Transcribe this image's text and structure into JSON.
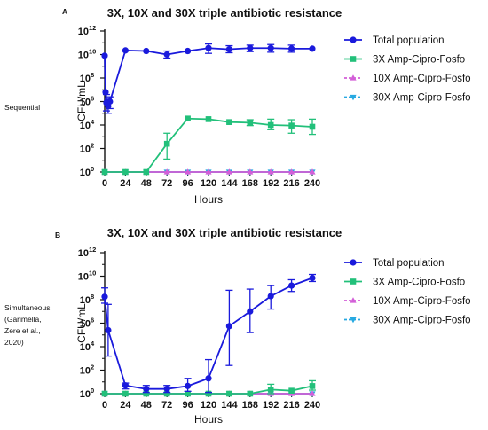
{
  "chart_data": [
    {
      "panel": "A",
      "type": "line",
      "side_label": [
        "Sequential"
      ],
      "title": "3X, 10X and 30X triple antibiotic resistance",
      "xlabel": "Hours",
      "ylabel": "CFU/mL",
      "xlim": [
        0,
        240
      ],
      "x_ticks": [
        0,
        24,
        48,
        72,
        96,
        120,
        144,
        168,
        192,
        216,
        240
      ],
      "y_scale": "log",
      "ylim_log10": [
        0,
        12
      ],
      "y_ticks_log10": [
        0,
        2,
        4,
        6,
        8,
        10,
        12
      ],
      "y_tick_base": "10",
      "series": [
        {
          "name": "Total population",
          "marker": "circle",
          "color": "#1a1adc",
          "points": [
            {
              "x": 0,
              "log10": 9.9
            },
            {
              "x": 1,
              "log10": 6.8
            },
            {
              "x": 2,
              "log10": 5.9,
              "err_lo": 5.2,
              "err_hi": 6.6
            },
            {
              "x": 4,
              "log10": 5.6,
              "err_lo": 5.0,
              "err_hi": 6.2
            },
            {
              "x": 6,
              "log10": 6.0,
              "err_lo": 5.4,
              "err_hi": 6.4
            },
            {
              "x": 24,
              "log10": 10.35
            },
            {
              "x": 48,
              "log10": 10.3
            },
            {
              "x": 72,
              "log10": 10.0,
              "err_lo": 9.7,
              "err_hi": 10.3
            },
            {
              "x": 96,
              "log10": 10.3
            },
            {
              "x": 120,
              "log10": 10.55,
              "err_lo": 10.1,
              "err_hi": 10.9
            },
            {
              "x": 144,
              "log10": 10.45,
              "err_lo": 10.15,
              "err_hi": 10.75
            },
            {
              "x": 168,
              "log10": 10.55,
              "err_lo": 10.25,
              "err_hi": 10.8
            },
            {
              "x": 192,
              "log10": 10.55,
              "err_lo": 10.2,
              "err_hi": 10.85
            },
            {
              "x": 216,
              "log10": 10.5,
              "err_lo": 10.2,
              "err_hi": 10.8
            },
            {
              "x": 240,
              "log10": 10.5
            }
          ]
        },
        {
          "name": "3X Amp-Cipro-Fosfo",
          "marker": "square",
          "color": "#22c07a",
          "points": [
            {
              "x": 0,
              "log10": 0
            },
            {
              "x": 24,
              "log10": 0
            },
            {
              "x": 48,
              "log10": 0
            },
            {
              "x": 72,
              "log10": 2.4,
              "err_lo": 1.1,
              "err_hi": 3.3
            },
            {
              "x": 96,
              "log10": 4.55
            },
            {
              "x": 120,
              "log10": 4.5
            },
            {
              "x": 144,
              "log10": 4.25
            },
            {
              "x": 168,
              "log10": 4.2,
              "err_lo": 3.95,
              "err_hi": 4.45
            },
            {
              "x": 192,
              "log10": 4.0,
              "err_lo": 3.6,
              "err_hi": 4.5
            },
            {
              "x": 216,
              "log10": 3.95,
              "err_lo": 3.3,
              "err_hi": 4.45
            },
            {
              "x": 240,
              "log10": 3.85,
              "err_lo": 3.2,
              "err_hi": 4.5
            }
          ]
        },
        {
          "name": "10X Amp-Cipro-Fosfo",
          "marker": "triangle-up",
          "color": "#d35fd8",
          "points": [
            {
              "x": 0,
              "log10": 0
            },
            {
              "x": 24,
              "log10": 0
            },
            {
              "x": 48,
              "log10": 0
            },
            {
              "x": 72,
              "log10": 0
            },
            {
              "x": 96,
              "log10": 0
            },
            {
              "x": 120,
              "log10": 0
            },
            {
              "x": 144,
              "log10": 0
            },
            {
              "x": 168,
              "log10": 0
            },
            {
              "x": 192,
              "log10": 0
            },
            {
              "x": 216,
              "log10": 0
            },
            {
              "x": 240,
              "log10": 0
            }
          ]
        },
        {
          "name": "30X Amp-Cipro-Fosfo",
          "marker": "triangle-down",
          "color": "#27a9e1",
          "points": [
            {
              "x": 0,
              "log10": 0
            },
            {
              "x": 24,
              "log10": 0
            },
            {
              "x": 48,
              "log10": 0
            },
            {
              "x": 72,
              "log10": 0
            },
            {
              "x": 96,
              "log10": 0
            },
            {
              "x": 120,
              "log10": 0
            },
            {
              "x": 144,
              "log10": 0
            },
            {
              "x": 168,
              "log10": 0
            },
            {
              "x": 192,
              "log10": 0
            },
            {
              "x": 216,
              "log10": 0
            },
            {
              "x": 240,
              "log10": 0
            }
          ]
        }
      ]
    },
    {
      "panel": "B",
      "type": "line",
      "side_label": [
        "Simultaneous",
        "(Garimella,",
        "Zere et al.,",
        "2020)"
      ],
      "title": "3X, 10X and 30X triple antibiotic resistance",
      "xlabel": "Hours",
      "ylabel": "CFU/mL",
      "xlim": [
        0,
        240
      ],
      "x_ticks": [
        0,
        24,
        48,
        72,
        96,
        120,
        144,
        168,
        192,
        216,
        240
      ],
      "y_scale": "log",
      "ylim_log10": [
        0,
        12
      ],
      "y_ticks_log10": [
        0,
        2,
        4,
        6,
        8,
        10,
        12
      ],
      "y_tick_base": "10",
      "series": [
        {
          "name": "Total population",
          "marker": "circle",
          "color": "#1a1adc",
          "points": [
            {
              "x": 0,
              "log10": 8.25,
              "err_lo": 7.7,
              "err_hi": 9.0
            },
            {
              "x": 4,
              "log10": 5.4,
              "err_lo": 3.2,
              "err_hi": 7.6
            },
            {
              "x": 24,
              "log10": 0.7,
              "err_lo": 0.4,
              "err_hi": 0.9
            },
            {
              "x": 48,
              "log10": 0.4,
              "err_lo": 0.1,
              "err_hi": 0.7
            },
            {
              "x": 72,
              "log10": 0.4,
              "err_lo": 0.1,
              "err_hi": 0.7
            },
            {
              "x": 96,
              "log10": 0.65,
              "err_lo": 0.2,
              "err_hi": 1.3
            },
            {
              "x": 120,
              "log10": 1.3,
              "err_lo": 0.1,
              "err_hi": 2.9
            },
            {
              "x": 144,
              "log10": 5.75,
              "err_lo": 2.4,
              "err_hi": 8.8
            },
            {
              "x": 168,
              "log10": 7.0,
              "err_lo": 5.2,
              "err_hi": 8.9
            },
            {
              "x": 192,
              "log10": 8.3,
              "err_lo": 7.2,
              "err_hi": 9.2
            },
            {
              "x": 216,
              "log10": 9.2,
              "err_lo": 8.7,
              "err_hi": 9.7
            },
            {
              "x": 240,
              "log10": 9.85,
              "err_lo": 9.55,
              "err_hi": 10.15
            }
          ]
        },
        {
          "name": "3X Amp-Cipro-Fosfo",
          "marker": "square",
          "color": "#22c07a",
          "points": [
            {
              "x": 0,
              "log10": 0
            },
            {
              "x": 24,
              "log10": 0
            },
            {
              "x": 48,
              "log10": 0
            },
            {
              "x": 72,
              "log10": 0
            },
            {
              "x": 96,
              "log10": 0
            },
            {
              "x": 120,
              "log10": 0
            },
            {
              "x": 144,
              "log10": 0
            },
            {
              "x": 168,
              "log10": 0
            },
            {
              "x": 192,
              "log10": 0.35,
              "err_lo": 0.0,
              "err_hi": 0.8
            },
            {
              "x": 216,
              "log10": 0.25
            },
            {
              "x": 240,
              "log10": 0.65,
              "err_lo": 0.3,
              "err_hi": 1.1
            }
          ]
        },
        {
          "name": "10X Amp-Cipro-Fosfo",
          "marker": "triangle-up",
          "color": "#d35fd8",
          "points": [
            {
              "x": 0,
              "log10": 0
            },
            {
              "x": 24,
              "log10": 0
            },
            {
              "x": 48,
              "log10": 0
            },
            {
              "x": 72,
              "log10": 0
            },
            {
              "x": 96,
              "log10": 0
            },
            {
              "x": 120,
              "log10": 0
            },
            {
              "x": 144,
              "log10": 0
            },
            {
              "x": 168,
              "log10": 0
            },
            {
              "x": 192,
              "log10": 0
            },
            {
              "x": 216,
              "log10": 0
            },
            {
              "x": 240,
              "log10": 0
            }
          ]
        },
        {
          "name": "30X Amp-Cipro-Fosfo",
          "marker": "triangle-down",
          "color": "#27a9e1",
          "points": [
            {
              "x": 0,
              "log10": 0
            },
            {
              "x": 24,
              "log10": 0
            },
            {
              "x": 48,
              "log10": 0
            },
            {
              "x": 72,
              "log10": 0
            },
            {
              "x": 96,
              "log10": 0
            },
            {
              "x": 120,
              "log10": 0
            },
            {
              "x": 144,
              "log10": 0
            },
            {
              "x": 168,
              "log10": 0
            },
            {
              "x": 192,
              "log10": 0
            },
            {
              "x": 216,
              "log10": 0
            },
            {
              "x": 240,
              "log10": 0
            }
          ]
        }
      ]
    }
  ]
}
